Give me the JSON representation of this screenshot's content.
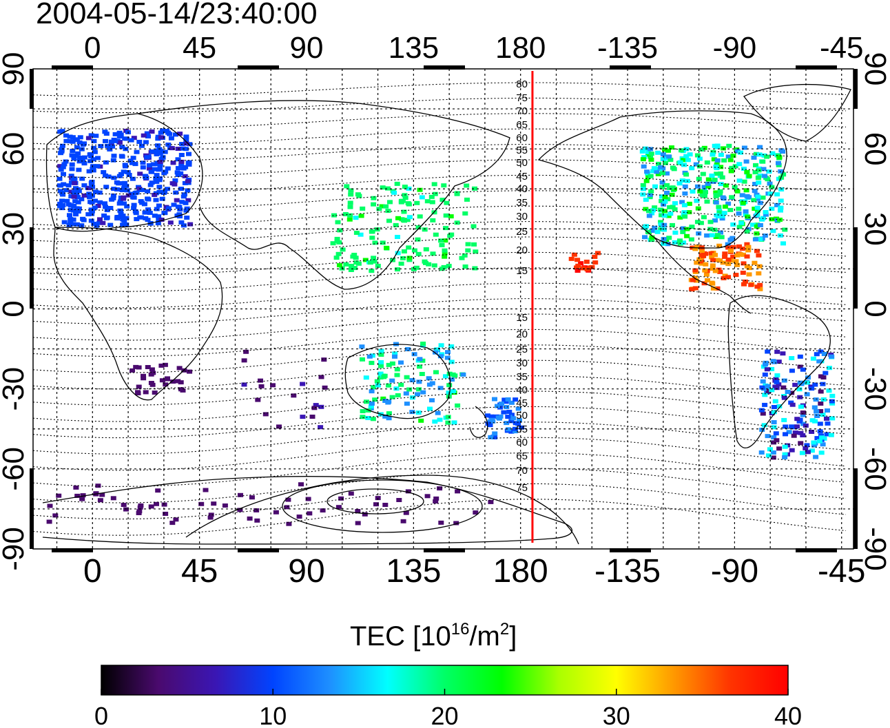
{
  "title": "2004-05-14/23:40:00",
  "map": {
    "lon_tick_labels": [
      "0",
      "45",
      "90",
      "135",
      "180",
      "-135",
      "-90",
      "-45"
    ],
    "lat_tick_labels": [
      "90",
      "60",
      "30",
      "0",
      "-30",
      "-60",
      "-90"
    ],
    "dip_contour_labels": [
      "80",
      "75",
      "70",
      "65",
      "60",
      "55",
      "50",
      "45",
      "40",
      "35",
      "30",
      "25",
      "20",
      "15",
      "15",
      "20",
      "25",
      "30",
      "35",
      "40",
      "45",
      "50",
      "55",
      "60",
      "65",
      "70",
      "75"
    ],
    "meridian_line_color": "#ff0000",
    "meridian_lon": -175,
    "colors": {
      "frame": "#000000",
      "grid": "#000000"
    }
  },
  "colorbar": {
    "label_prefix": "TEC  [10",
    "label_exp1": "16",
    "label_mid": "/m",
    "label_exp2": "2",
    "label_suffix": "]",
    "tick_labels": [
      "0",
      "10",
      "20",
      "30",
      "40"
    ],
    "range": [
      0,
      40
    ],
    "colormap_stops": [
      "#000000",
      "#4a0a6e",
      "#3a16b4",
      "#0044ff",
      "#1e90ff",
      "#00ffff",
      "#00ff66",
      "#00ff00",
      "#aaff00",
      "#ffff00",
      "#ff9900",
      "#ff3300",
      "#ff0000"
    ]
  }
}
